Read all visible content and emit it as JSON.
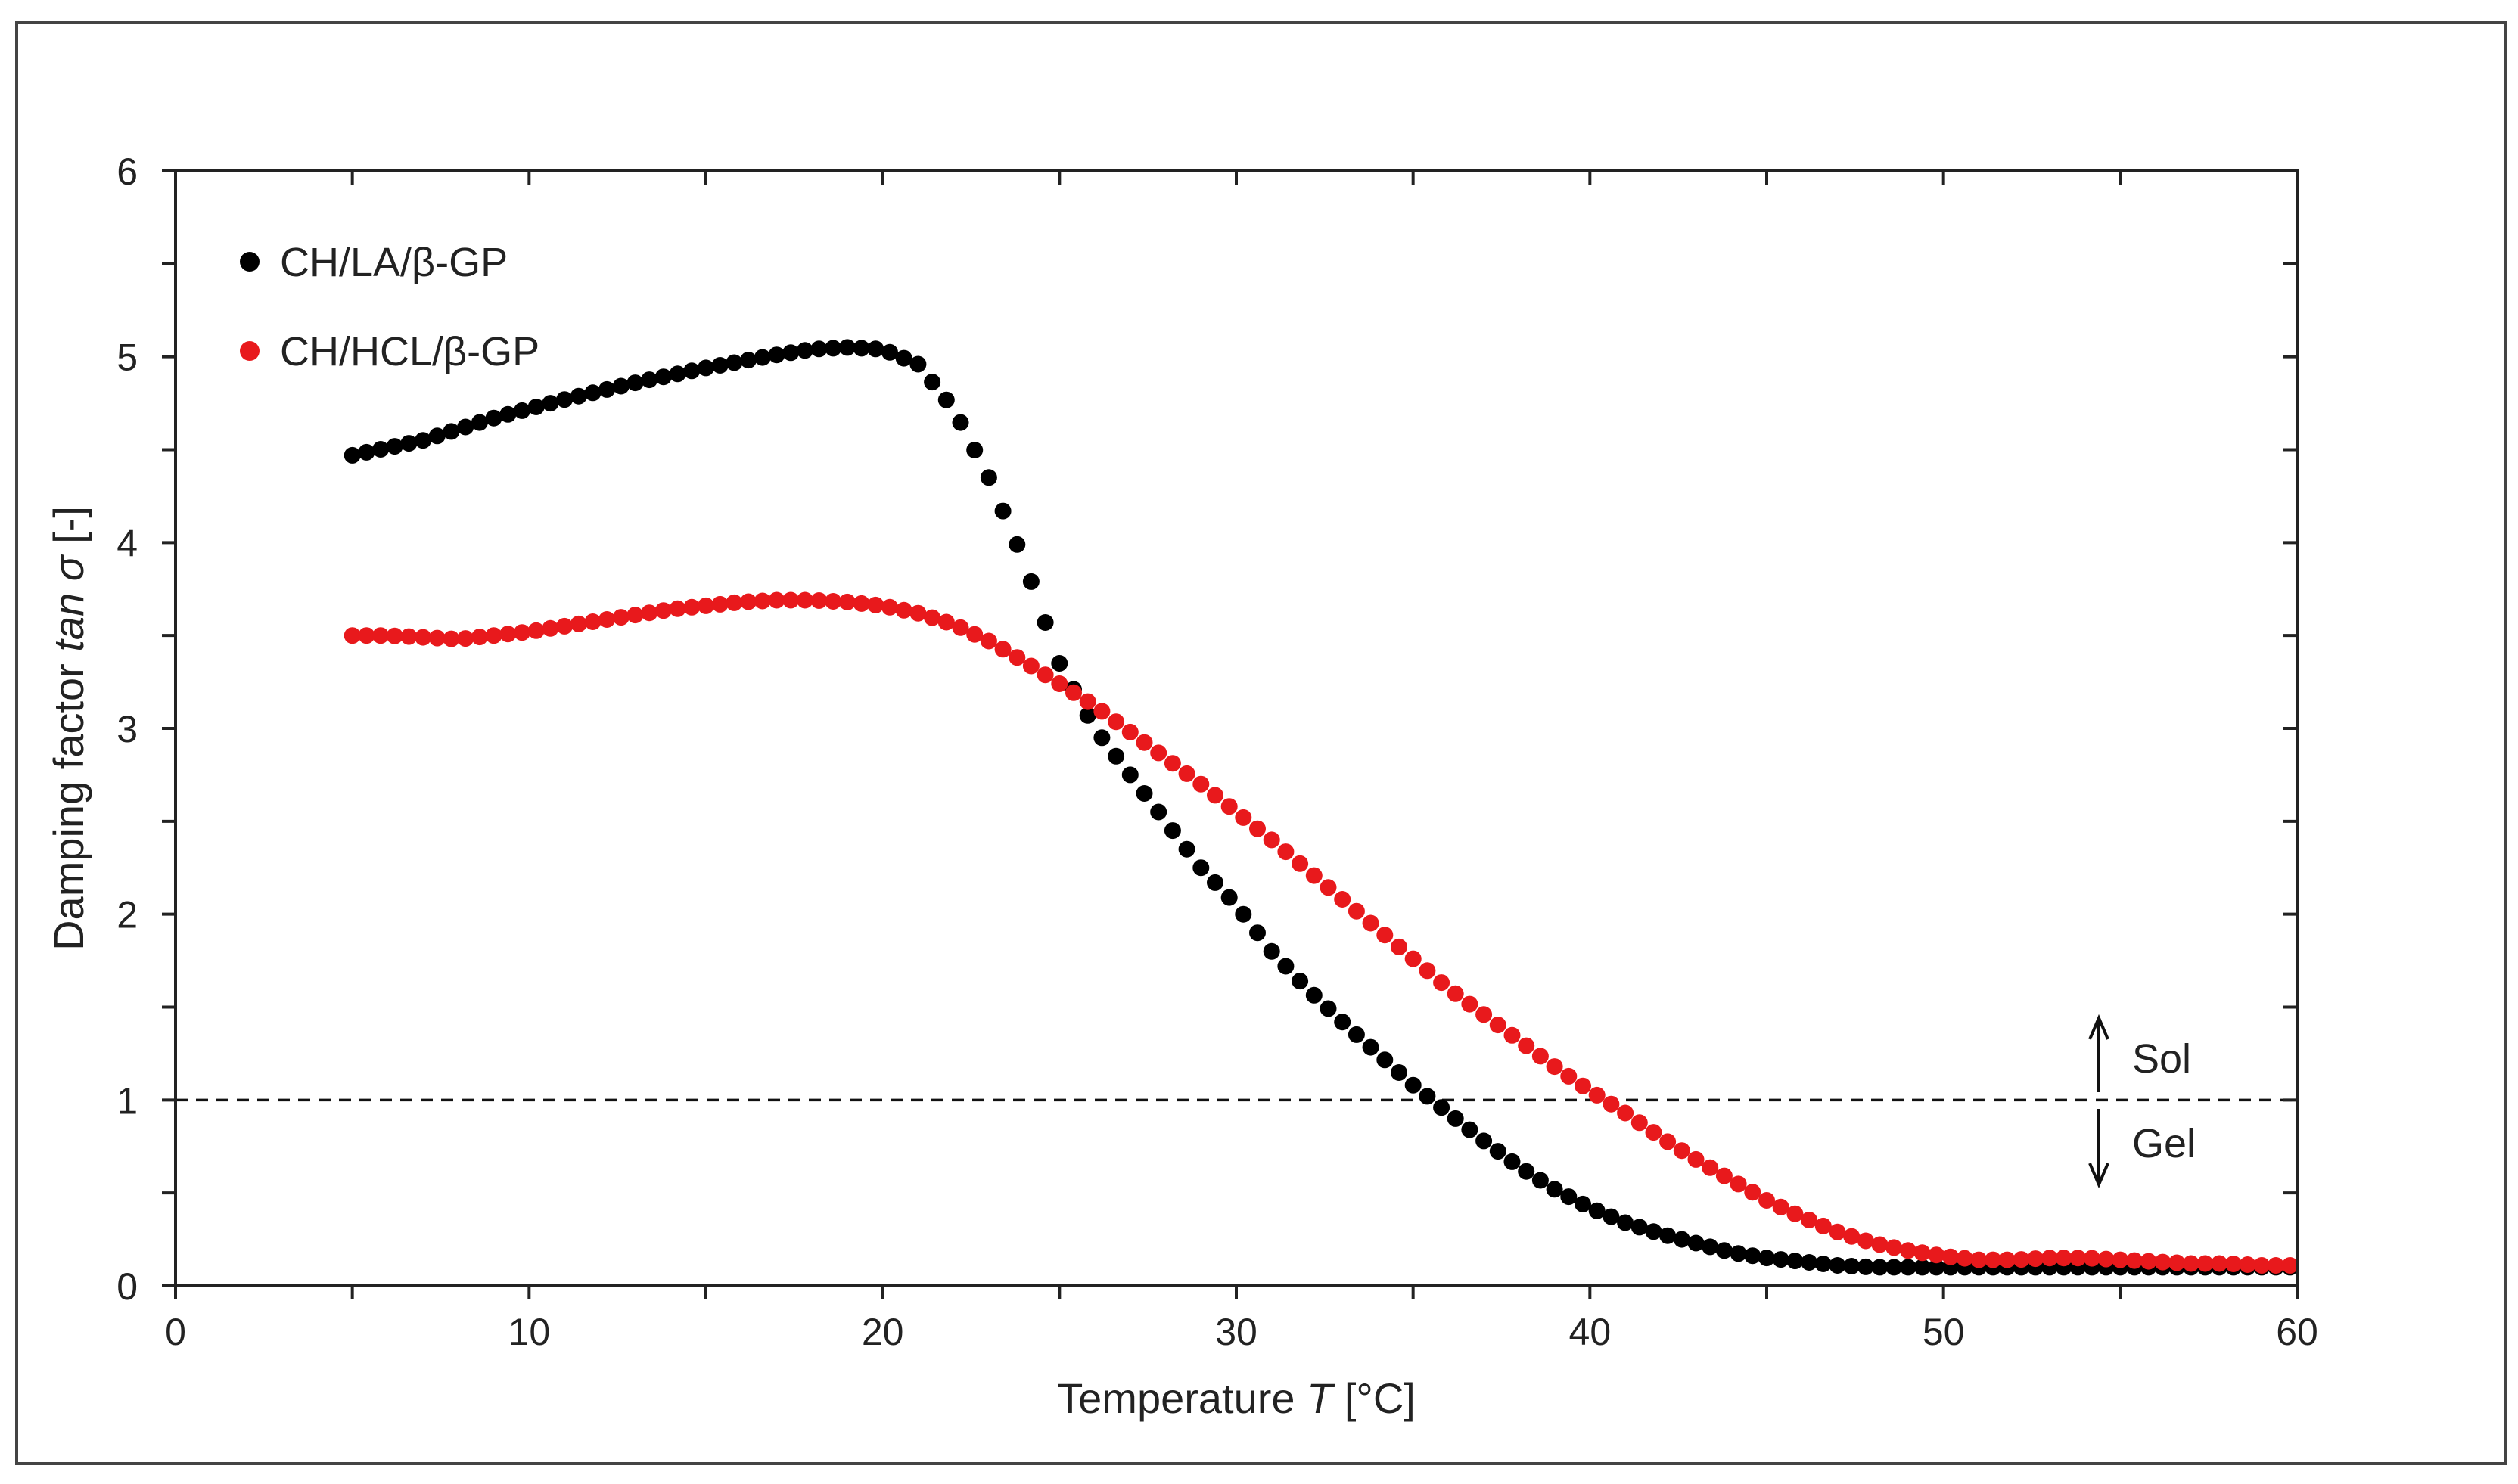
{
  "chart_data": {
    "type": "scatter",
    "title": "",
    "xlabel": "Temperature T [°C]",
    "xlabel_parts": {
      "prefix": "Temperature ",
      "var": "T",
      "suffix": " [°C]"
    },
    "ylabel": "Damping factor tan σ [-]",
    "ylabel_parts": {
      "prefix": "Damping factor ",
      "var": "tan σ",
      "suffix": " [-]"
    },
    "xlim": [
      0,
      60
    ],
    "ylim": [
      0,
      6
    ],
    "xticks": [
      0,
      10,
      20,
      30,
      40,
      50,
      60
    ],
    "yticks": [
      0,
      1,
      2,
      3,
      4,
      5,
      6
    ],
    "grid": false,
    "legend_position": "top-left",
    "reference_line": {
      "y": 1,
      "style": "dashed"
    },
    "annotations": {
      "sol": "Sol",
      "gel": "Gel"
    },
    "series": [
      {
        "name": "CH/LA/β-GP",
        "color": "#000000",
        "points": [
          [
            5,
            4.47
          ],
          [
            7,
            4.55
          ],
          [
            9,
            4.67
          ],
          [
            11,
            4.77
          ],
          [
            13,
            4.86
          ],
          [
            15,
            4.94
          ],
          [
            17,
            5.01
          ],
          [
            18,
            5.04
          ],
          [
            19,
            5.05
          ],
          [
            20,
            5.04
          ],
          [
            21,
            4.96
          ],
          [
            22,
            4.72
          ],
          [
            23,
            4.35
          ],
          [
            24,
            3.9
          ],
          [
            25,
            3.35
          ],
          [
            26,
            3.0
          ],
          [
            27,
            2.75
          ],
          [
            28,
            2.5
          ],
          [
            29,
            2.25
          ],
          [
            30,
            2.05
          ],
          [
            31,
            1.8
          ],
          [
            32,
            1.6
          ],
          [
            33,
            1.42
          ],
          [
            34,
            1.25
          ],
          [
            35,
            1.08
          ],
          [
            36,
            0.93
          ],
          [
            37,
            0.78
          ],
          [
            38,
            0.64
          ],
          [
            39,
            0.52
          ],
          [
            40,
            0.42
          ],
          [
            41,
            0.34
          ],
          [
            42,
            0.28
          ],
          [
            43,
            0.23
          ],
          [
            44,
            0.18
          ],
          [
            45,
            0.15
          ],
          [
            46,
            0.13
          ],
          [
            47,
            0.11
          ],
          [
            48,
            0.1
          ],
          [
            50,
            0.1
          ],
          [
            52,
            0.1
          ],
          [
            55,
            0.1
          ],
          [
            58,
            0.1
          ],
          [
            60,
            0.1
          ]
        ]
      },
      {
        "name": "CH/HCL/β-GP",
        "color": "#e8191c",
        "points": [
          [
            5,
            3.5
          ],
          [
            6,
            3.5
          ],
          [
            7,
            3.49
          ],
          [
            8,
            3.48
          ],
          [
            9,
            3.5
          ],
          [
            10,
            3.52
          ],
          [
            11,
            3.55
          ],
          [
            12,
            3.58
          ],
          [
            13,
            3.61
          ],
          [
            14,
            3.64
          ],
          [
            15,
            3.66
          ],
          [
            16,
            3.68
          ],
          [
            17,
            3.69
          ],
          [
            18,
            3.69
          ],
          [
            19,
            3.68
          ],
          [
            20,
            3.66
          ],
          [
            21,
            3.62
          ],
          [
            22,
            3.56
          ],
          [
            23,
            3.47
          ],
          [
            24,
            3.36
          ],
          [
            25,
            3.24
          ],
          [
            26,
            3.12
          ],
          [
            27,
            2.98
          ],
          [
            28,
            2.84
          ],
          [
            29,
            2.7
          ],
          [
            30,
            2.55
          ],
          [
            31,
            2.4
          ],
          [
            32,
            2.24
          ],
          [
            33,
            2.08
          ],
          [
            34,
            1.92
          ],
          [
            35,
            1.76
          ],
          [
            36,
            1.6
          ],
          [
            37,
            1.46
          ],
          [
            38,
            1.32
          ],
          [
            39,
            1.18
          ],
          [
            40,
            1.05
          ],
          [
            41,
            0.93
          ],
          [
            42,
            0.8
          ],
          [
            43,
            0.68
          ],
          [
            44,
            0.57
          ],
          [
            45,
            0.46
          ],
          [
            46,
            0.37
          ],
          [
            47,
            0.29
          ],
          [
            48,
            0.23
          ],
          [
            49,
            0.19
          ],
          [
            50,
            0.16
          ],
          [
            51,
            0.14
          ],
          [
            52,
            0.14
          ],
          [
            53,
            0.15
          ],
          [
            54,
            0.15
          ],
          [
            55,
            0.14
          ],
          [
            56,
            0.13
          ],
          [
            57,
            0.12
          ],
          [
            58,
            0.12
          ],
          [
            59,
            0.11
          ],
          [
            60,
            0.11
          ]
        ]
      }
    ]
  }
}
